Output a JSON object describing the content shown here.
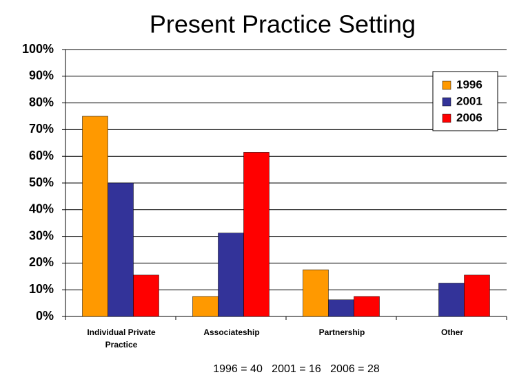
{
  "chart_data": {
    "type": "bar",
    "title": "Present Practice Setting",
    "categories": [
      "Individual Private Practice",
      "Associateship",
      "Partnership",
      "Other"
    ],
    "series": [
      {
        "name": "1996",
        "color": "#ff9900",
        "values": [
          75,
          7.5,
          17.5,
          0
        ]
      },
      {
        "name": "2001",
        "color": "#333399",
        "values": [
          50,
          31.25,
          6.25,
          12.5
        ]
      },
      {
        "name": "2006",
        "color": "#ff0000",
        "values": [
          15.5,
          61.5,
          7.5,
          15.5
        ]
      }
    ],
    "ylim": [
      0,
      100
    ],
    "yticks": [
      {
        "value": 0,
        "label": "0%"
      },
      {
        "value": 10,
        "label": "10%"
      },
      {
        "value": 20,
        "label": "20%"
      },
      {
        "value": 30,
        "label": "30%"
      },
      {
        "value": 40,
        "label": "40%"
      },
      {
        "value": 50,
        "label": "50%"
      },
      {
        "value": 60,
        "label": "60%"
      },
      {
        "value": 70,
        "label": "70%"
      },
      {
        "value": 80,
        "label": "80%"
      },
      {
        "value": 90,
        "label": "90%"
      },
      {
        "value": 100,
        "label": "100%"
      }
    ],
    "grid": true,
    "legend": "top-right",
    "annotation": "1996 = 40   2001 = 16   2006 = 28"
  }
}
